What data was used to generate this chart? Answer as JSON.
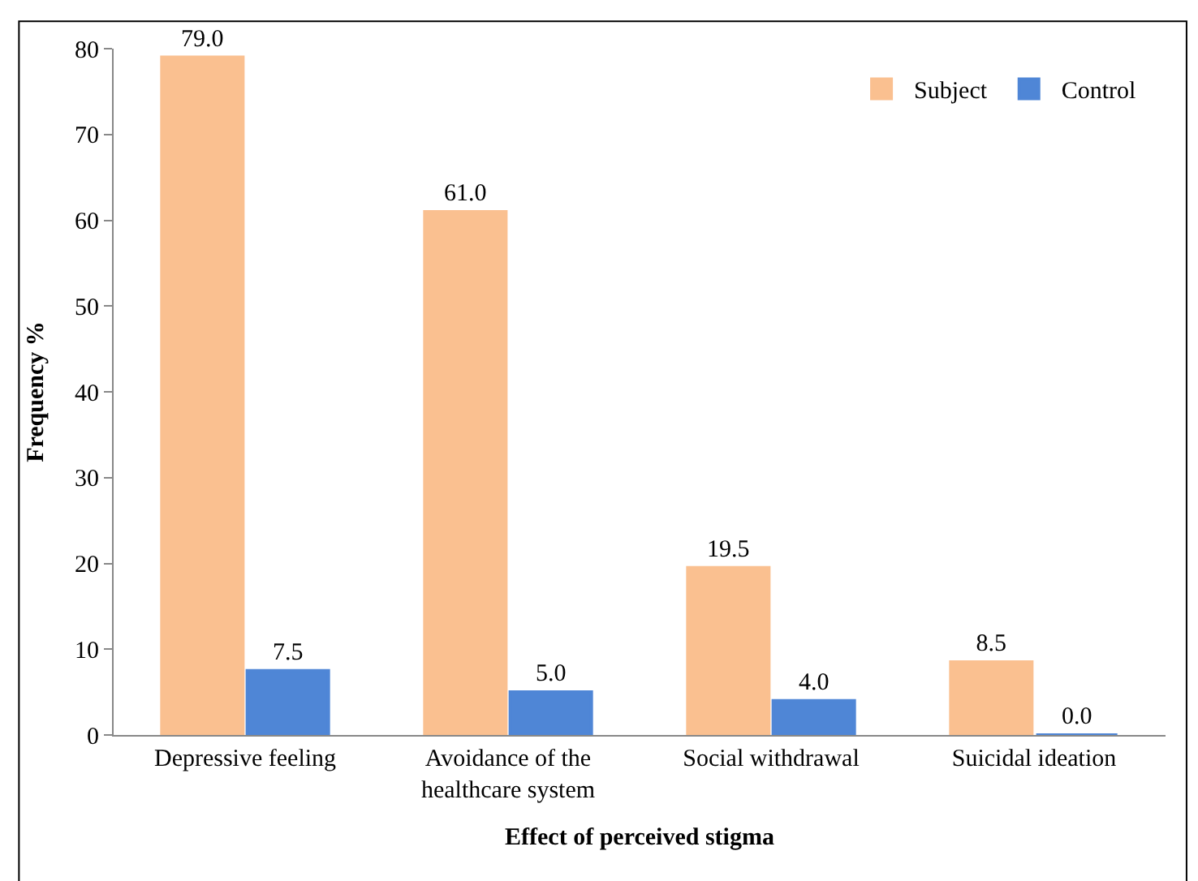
{
  "chart_data": {
    "type": "bar",
    "xlabel": "Effect of perceived stigma",
    "ylabel": "Frequency %",
    "categories": [
      "Depressive feeling",
      "Avoidance of the healthcare system",
      "Social withdrawal",
      "Suicidal ideation"
    ],
    "series": [
      {
        "name": "Subject",
        "color": "#fac090",
        "values": [
          79.0,
          61.0,
          19.5,
          8.5
        ],
        "value_labels": [
          "79.0",
          "61.0",
          "19.5",
          "8.5"
        ]
      },
      {
        "name": "Control",
        "color": "#4f86d6",
        "values": [
          7.5,
          5.0,
          4.0,
          0.0
        ],
        "value_labels": [
          "7.5",
          "5.0",
          "4.0",
          "0.0"
        ]
      }
    ],
    "ylim": [
      0,
      80
    ],
    "yticks": [
      0,
      10,
      20,
      30,
      40,
      50,
      60,
      70,
      80
    ],
    "legend": "top right"
  }
}
